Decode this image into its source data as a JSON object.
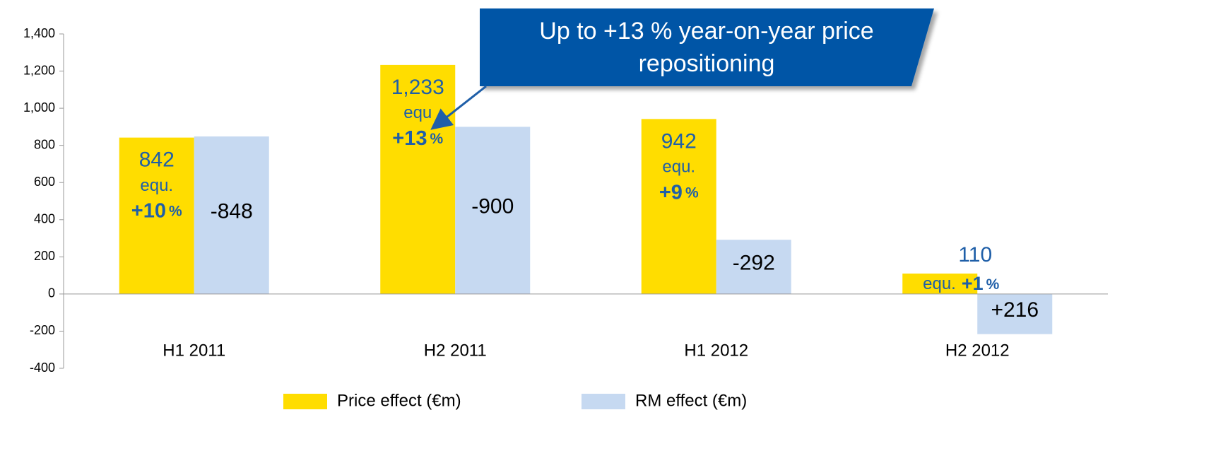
{
  "chart_data": {
    "type": "bar",
    "categories": [
      "H1 2011",
      "H2 2011",
      "H1 2012",
      "H2 2012"
    ],
    "series": [
      {
        "name": "Price effect (€m)",
        "color": "#FFDD00",
        "values": [
          842,
          1233,
          942,
          110
        ],
        "value_labels": [
          "842",
          "1,233",
          "942",
          "110"
        ],
        "notes": [
          {
            "prefix": "equ.",
            "change": "+10",
            "unit": "%"
          },
          {
            "prefix": "equ",
            "change": "+13",
            "unit": "%"
          },
          {
            "prefix": "equ.",
            "change": "+9",
            "unit": "%"
          },
          {
            "prefix": "equ.",
            "change": "+1",
            "unit": "%"
          }
        ]
      },
      {
        "name": "RM effect (€m)",
        "color": "#C6D9F1",
        "values": [
          848,
          900,
          292,
          -216
        ],
        "value_labels": [
          "-848",
          "-900",
          "-292",
          "+216"
        ]
      }
    ],
    "ylim": [
      -400,
      1400
    ],
    "yticks": [
      -400,
      -200,
      0,
      200,
      400,
      600,
      800,
      {
        "value": 1000,
        "label": "1,000"
      },
      {
        "value": 1200,
        "label": "1,200"
      },
      {
        "value": 1400,
        "label": "1,400"
      }
    ],
    "callout": {
      "lines": [
        "Up to +13 % year-on-year price",
        "repositioning"
      ]
    }
  }
}
